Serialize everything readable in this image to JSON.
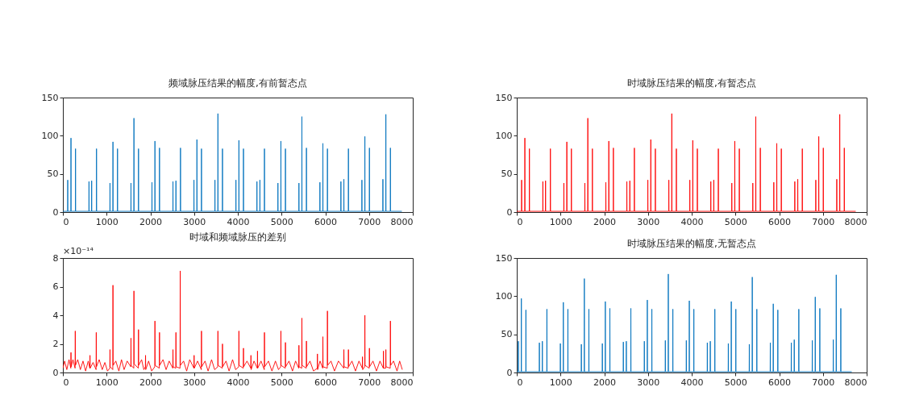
{
  "chart_data": [
    {
      "type": "line",
      "title": "频域脉压结果的幅度,有前暂态点",
      "color": "#0072bd",
      "xlim": [
        0,
        8000
      ],
      "xticks": [
        0,
        1000,
        2000,
        3000,
        4000,
        5000,
        6000,
        7000,
        8000
      ],
      "ylim": [
        0,
        150
      ],
      "yticks": [
        0,
        50,
        100,
        150
      ],
      "x": [
        0,
        108,
        111,
        114,
        182,
        185,
        188,
        286,
        289,
        292,
        594,
        597,
        600,
        655,
        658,
        661,
        766,
        769,
        772,
        1074,
        1077,
        1080,
        1142,
        1145,
        1148,
        1246,
        1249,
        1252,
        1554,
        1557,
        1560,
        1622,
        1625,
        1628,
        1726,
        1729,
        1732,
        2034,
        2037,
        2040,
        2102,
        2105,
        2108,
        2206,
        2209,
        2212,
        2514,
        2517,
        2520,
        2582,
        2585,
        2588,
        2686,
        2689,
        2692,
        2994,
        2997,
        3000,
        3062,
        3065,
        3068,
        3166,
        3169,
        3172,
        3474,
        3477,
        3480,
        3542,
        3545,
        3548,
        3646,
        3649,
        3652,
        3954,
        3957,
        3960,
        4022,
        4025,
        4028,
        4126,
        4129,
        4132,
        4434,
        4437,
        4440,
        4502,
        4505,
        4508,
        4606,
        4609,
        4612,
        4914,
        4917,
        4920,
        4982,
        4985,
        4988,
        5086,
        5089,
        5092,
        5394,
        5397,
        5400,
        5462,
        5465,
        5468,
        5566,
        5569,
        5572,
        5874,
        5877,
        5880,
        5942,
        5945,
        5948,
        6046,
        6049,
        6052,
        6354,
        6357,
        6360,
        6422,
        6425,
        6428,
        6526,
        6529,
        6532,
        6834,
        6837,
        6840,
        6902,
        6905,
        6908,
        7006,
        7009,
        7012,
        7314,
        7317,
        7320,
        7382,
        7385,
        7388,
        7486,
        7489,
        7492,
        7750
      ],
      "values": [
        1,
        1,
        42,
        1,
        1,
        97,
        1,
        1,
        83,
        1,
        1,
        40,
        1,
        1,
        41,
        1,
        1,
        83,
        1,
        1,
        38,
        1,
        1,
        92,
        1,
        1,
        83,
        1,
        1,
        38,
        1,
        1,
        123,
        1,
        1,
        83,
        1,
        1,
        39,
        1,
        1,
        93,
        1,
        1,
        84,
        1,
        1,
        40,
        1,
        1,
        41,
        1,
        1,
        84,
        1,
        1,
        42,
        1,
        1,
        95,
        1,
        1,
        83,
        1,
        1,
        42,
        1,
        1,
        129,
        1,
        1,
        83,
        1,
        1,
        42,
        1,
        1,
        94,
        1,
        1,
        83,
        1,
        1,
        40,
        1,
        1,
        42,
        1,
        1,
        83,
        1,
        1,
        38,
        1,
        1,
        93,
        1,
        1,
        83,
        1,
        1,
        38,
        1,
        1,
        125,
        1,
        1,
        84,
        1,
        1,
        39,
        1,
        1,
        90,
        1,
        1,
        83,
        1,
        1,
        40,
        1,
        1,
        43,
        1,
        1,
        83,
        1,
        1,
        42,
        1,
        1,
        99,
        1,
        1,
        84,
        1,
        1,
        43,
        1,
        1,
        128,
        1,
        1,
        84,
        1,
        1
      ]
    },
    {
      "type": "line",
      "title": "时域脉压结果的幅度,有暂态点",
      "color": "#ff0000",
      "xlim": [
        0,
        8000
      ],
      "xticks": [
        0,
        1000,
        2000,
        3000,
        4000,
        5000,
        6000,
        7000,
        8000
      ],
      "ylim": [
        0,
        150
      ],
      "yticks": [
        0,
        50,
        100,
        150
      ],
      "x": [
        0,
        108,
        111,
        114,
        182,
        185,
        188,
        286,
        289,
        292,
        594,
        597,
        600,
        655,
        658,
        661,
        766,
        769,
        772,
        1074,
        1077,
        1080,
        1142,
        1145,
        1148,
        1246,
        1249,
        1252,
        1554,
        1557,
        1560,
        1622,
        1625,
        1628,
        1726,
        1729,
        1732,
        2034,
        2037,
        2040,
        2102,
        2105,
        2108,
        2206,
        2209,
        2212,
        2514,
        2517,
        2520,
        2582,
        2585,
        2588,
        2686,
        2689,
        2692,
        2994,
        2997,
        3000,
        3062,
        3065,
        3068,
        3166,
        3169,
        3172,
        3474,
        3477,
        3480,
        3542,
        3545,
        3548,
        3646,
        3649,
        3652,
        3954,
        3957,
        3960,
        4022,
        4025,
        4028,
        4126,
        4129,
        4132,
        4434,
        4437,
        4440,
        4502,
        4505,
        4508,
        4606,
        4609,
        4612,
        4914,
        4917,
        4920,
        4982,
        4985,
        4988,
        5086,
        5089,
        5092,
        5394,
        5397,
        5400,
        5462,
        5465,
        5468,
        5566,
        5569,
        5572,
        5874,
        5877,
        5880,
        5942,
        5945,
        5948,
        6046,
        6049,
        6052,
        6354,
        6357,
        6360,
        6422,
        6425,
        6428,
        6526,
        6529,
        6532,
        6834,
        6837,
        6840,
        6902,
        6905,
        6908,
        7006,
        7009,
        7012,
        7314,
        7317,
        7320,
        7382,
        7385,
        7388,
        7486,
        7489,
        7492,
        7750
      ],
      "values": [
        1,
        1,
        42,
        1,
        1,
        97,
        1,
        1,
        83,
        1,
        1,
        40,
        1,
        1,
        41,
        1,
        1,
        83,
        1,
        1,
        38,
        1,
        1,
        92,
        1,
        1,
        83,
        1,
        1,
        38,
        1,
        1,
        123,
        1,
        1,
        83,
        1,
        1,
        39,
        1,
        1,
        93,
        1,
        1,
        84,
        1,
        1,
        40,
        1,
        1,
        41,
        1,
        1,
        84,
        1,
        1,
        42,
        1,
        1,
        95,
        1,
        1,
        83,
        1,
        1,
        42,
        1,
        1,
        129,
        1,
        1,
        83,
        1,
        1,
        42,
        1,
        1,
        94,
        1,
        1,
        83,
        1,
        1,
        40,
        1,
        1,
        42,
        1,
        1,
        83,
        1,
        1,
        38,
        1,
        1,
        93,
        1,
        1,
        83,
        1,
        1,
        38,
        1,
        1,
        125,
        1,
        1,
        84,
        1,
        1,
        39,
        1,
        1,
        90,
        1,
        1,
        83,
        1,
        1,
        40,
        1,
        1,
        43,
        1,
        1,
        83,
        1,
        1,
        42,
        1,
        1,
        99,
        1,
        1,
        84,
        1,
        1,
        43,
        1,
        1,
        128,
        1,
        1,
        84,
        1,
        1
      ]
    },
    {
      "type": "line",
      "title": "时域和频域脉压的差别",
      "color": "#ff0000",
      "annotations": [
        "×10⁻¹⁴"
      ],
      "xlim": [
        0,
        8000
      ],
      "xticks": [
        0,
        1000,
        2000,
        3000,
        4000,
        5000,
        6000,
        7000,
        8000
      ],
      "ylim": [
        0,
        8
      ],
      "yticks": [
        0,
        2,
        4,
        6,
        8
      ],
      "x": [
        0,
        40,
        90,
        140,
        181,
        185,
        189,
        230,
        279,
        283,
        287,
        340,
        400,
        460,
        520,
        580,
        616,
        620,
        624,
        690,
        759,
        763,
        767,
        830,
        900,
        960,
        1020,
        1073,
        1077,
        1081,
        1141,
        1145,
        1149,
        1210,
        1280,
        1340,
        1400,
        1470,
        1553,
        1557,
        1561,
        1621,
        1625,
        1629,
        1725,
        1729,
        1733,
        1800,
        1850,
        1886,
        1890,
        1894,
        1960,
        2030,
        2101,
        2105,
        2109,
        2205,
        2209,
        2213,
        2290,
        2360,
        2430,
        2513,
        2517,
        2521,
        2581,
        2585,
        2589,
        2679,
        2683,
        2687,
        2760,
        2830,
        2900,
        2996,
        3000,
        3004,
        3080,
        3165,
        3169,
        3173,
        3250,
        3320,
        3400,
        3470,
        3541,
        3545,
        3549,
        3645,
        3649,
        3653,
        3730,
        3800,
        3880,
        3950,
        4021,
        4025,
        4029,
        4125,
        4129,
        4133,
        4210,
        4296,
        4300,
        4304,
        4370,
        4446,
        4450,
        4454,
        4530,
        4605,
        4609,
        4613,
        4700,
        4780,
        4860,
        4930,
        4981,
        4985,
        4989,
        5085,
        5089,
        5093,
        5170,
        5250,
        5320,
        5393,
        5397,
        5401,
        5461,
        5465,
        5469,
        5565,
        5569,
        5573,
        5650,
        5730,
        5816,
        5820,
        5824,
        5880,
        5941,
        5945,
        5949,
        6045,
        6049,
        6053,
        6130,
        6210,
        6300,
        6421,
        6425,
        6429,
        6525,
        6529,
        6533,
        6610,
        6690,
        6770,
        6846,
        6850,
        6854,
        6901,
        6905,
        6909,
        7005,
        7009,
        7013,
        7090,
        7170,
        7250,
        7326,
        7330,
        7334,
        7381,
        7385,
        7389,
        7485,
        7489,
        7493,
        7560,
        7640,
        7700,
        7760
      ],
      "values": [
        0.3,
        0.8,
        0.2,
        0.9,
        0.3,
        1.4,
        0.4,
        0.9,
        0.3,
        2.9,
        0.5,
        0.9,
        0.2,
        0.8,
        0.1,
        0.8,
        0.3,
        1.2,
        0.3,
        0.7,
        0.2,
        2.8,
        0.4,
        0.9,
        0.2,
        0.7,
        0.1,
        0.3,
        1.6,
        0.4,
        0.2,
        6.1,
        0.5,
        0.8,
        0.1,
        0.9,
        0.2,
        0.8,
        0.4,
        2.4,
        0.5,
        0.3,
        5.7,
        0.6,
        0.3,
        3.0,
        0.5,
        0.9,
        0.2,
        0.4,
        1.2,
        0.2,
        0.8,
        0.1,
        0.4,
        3.6,
        0.5,
        0.3,
        2.8,
        0.5,
        0.9,
        0.2,
        0.8,
        0.3,
        1.6,
        0.4,
        0.3,
        2.8,
        0.4,
        0.3,
        7.1,
        0.5,
        0.8,
        0.1,
        0.9,
        0.3,
        1.2,
        0.3,
        0.8,
        0.2,
        2.9,
        0.4,
        0.8,
        0.1,
        0.9,
        0.2,
        0.4,
        2.9,
        0.5,
        0.3,
        2.0,
        0.4,
        0.8,
        0.1,
        0.9,
        0.2,
        0.4,
        2.9,
        0.5,
        0.3,
        1.7,
        0.4,
        0.8,
        0.3,
        1.2,
        0.2,
        0.8,
        0.3,
        1.5,
        0.3,
        0.8,
        0.2,
        2.8,
        0.4,
        0.8,
        0.1,
        0.8,
        0.2,
        0.4,
        2.9,
        0.5,
        0.3,
        2.1,
        0.4,
        0.8,
        0.1,
        0.8,
        0.3,
        1.9,
        0.4,
        0.3,
        3.8,
        0.5,
        0.3,
        2.2,
        0.4,
        0.8,
        0.1,
        0.3,
        1.3,
        0.2,
        0.8,
        0.3,
        2.5,
        0.4,
        0.3,
        4.3,
        0.5,
        0.8,
        0.1,
        0.8,
        0.3,
        1.6,
        0.4,
        0.3,
        1.6,
        0.4,
        0.8,
        0.1,
        0.8,
        0.3,
        1.1,
        0.2,
        0.4,
        4.0,
        0.5,
        0.3,
        1.7,
        0.4,
        0.8,
        0.1,
        0.8,
        0.3,
        1.5,
        0.3,
        0.3,
        1.6,
        0.4,
        0.3,
        3.6,
        0.5,
        0.8,
        0.1,
        0.8,
        0.2
      ]
    },
    {
      "type": "line",
      "title": "时域脉压结果的幅度,无暂态点",
      "color": "#0072bd",
      "xlim": [
        0,
        8000
      ],
      "xticks": [
        0,
        1000,
        2000,
        3000,
        4000,
        5000,
        6000,
        7000,
        8000
      ],
      "ylim": [
        0,
        150
      ],
      "yticks": [
        0,
        50,
        100,
        150
      ],
      "x": [
        0,
        34,
        37,
        40,
        102,
        105,
        108,
        206,
        209,
        212,
        514,
        517,
        520,
        582,
        585,
        588,
        686,
        689,
        692,
        994,
        997,
        1000,
        1062,
        1065,
        1068,
        1166,
        1169,
        1172,
        1474,
        1477,
        1480,
        1542,
        1545,
        1548,
        1646,
        1649,
        1652,
        1954,
        1957,
        1960,
        2022,
        2025,
        2028,
        2126,
        2129,
        2132,
        2434,
        2437,
        2440,
        2502,
        2505,
        2508,
        2606,
        2609,
        2612,
        2914,
        2917,
        2920,
        2982,
        2985,
        2988,
        3086,
        3089,
        3092,
        3394,
        3397,
        3400,
        3462,
        3465,
        3468,
        3566,
        3569,
        3572,
        3874,
        3877,
        3880,
        3942,
        3945,
        3948,
        4046,
        4049,
        4052,
        4354,
        4357,
        4360,
        4422,
        4425,
        4428,
        4526,
        4529,
        4532,
        4834,
        4837,
        4840,
        4902,
        4905,
        4908,
        5006,
        5009,
        5012,
        5314,
        5317,
        5320,
        5382,
        5385,
        5388,
        5486,
        5489,
        5492,
        5794,
        5797,
        5800,
        5862,
        5865,
        5868,
        5966,
        5969,
        5972,
        6274,
        6277,
        6280,
        6342,
        6345,
        6348,
        6446,
        6449,
        6452,
        6754,
        6757,
        6760,
        6822,
        6825,
        6828,
        6926,
        6929,
        6932,
        7234,
        7237,
        7240,
        7302,
        7305,
        7308,
        7406,
        7409,
        7412,
        7660
      ],
      "values": [
        1,
        1,
        41,
        1,
        1,
        97,
        1,
        1,
        82,
        1,
        1,
        39,
        1,
        1,
        41,
        1,
        1,
        83,
        1,
        1,
        38,
        1,
        1,
        92,
        1,
        1,
        83,
        1,
        1,
        37,
        1,
        1,
        123,
        1,
        1,
        83,
        1,
        1,
        38,
        1,
        1,
        93,
        1,
        1,
        84,
        1,
        1,
        40,
        1,
        1,
        41,
        1,
        1,
        84,
        1,
        1,
        41,
        1,
        1,
        95,
        1,
        1,
        83,
        1,
        1,
        42,
        1,
        1,
        129,
        1,
        1,
        83,
        1,
        1,
        42,
        1,
        1,
        94,
        1,
        1,
        83,
        1,
        1,
        39,
        1,
        1,
        41,
        1,
        1,
        83,
        1,
        1,
        38,
        1,
        1,
        93,
        1,
        1,
        83,
        1,
        1,
        37,
        1,
        1,
        125,
        1,
        1,
        83,
        1,
        1,
        39,
        1,
        1,
        90,
        1,
        1,
        82,
        1,
        1,
        39,
        1,
        1,
        43,
        1,
        1,
        83,
        1,
        1,
        42,
        1,
        1,
        99,
        1,
        1,
        84,
        1,
        1,
        43,
        1,
        1,
        128,
        1,
        1,
        84,
        1,
        1
      ]
    }
  ]
}
